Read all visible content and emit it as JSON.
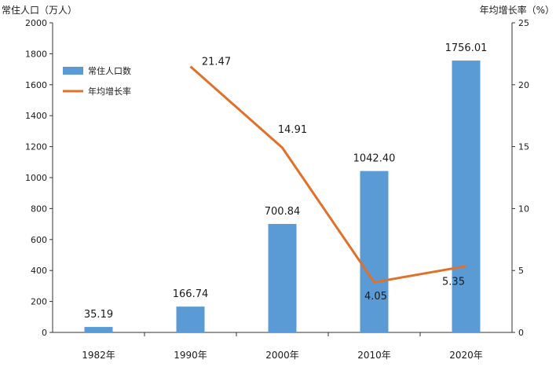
{
  "chart_data": {
    "type": "bar+line",
    "categories": [
      "1982年",
      "1990年",
      "2000年",
      "2010年",
      "2020年"
    ],
    "y_left": {
      "label": "常住人口（万人）",
      "min": 0,
      "max": 2000,
      "ticks": [
        0,
        200,
        400,
        600,
        800,
        1000,
        1200,
        1400,
        1600,
        1800,
        2000
      ]
    },
    "y_right": {
      "label": "年均增长率（%）",
      "min": 0,
      "max": 25,
      "ticks": [
        0,
        5,
        10,
        15,
        20,
        25
      ]
    },
    "series": [
      {
        "name": "常住人口数",
        "kind": "bar",
        "axis": "left",
        "color": "#5b9bd5",
        "values": [
          35.19,
          166.74,
          700.84,
          1042.4,
          1756.01
        ],
        "labels": [
          "35.19",
          "166.74",
          "700.84",
          "1042.40",
          "1756.01"
        ]
      },
      {
        "name": "年均增长率",
        "kind": "line",
        "axis": "right",
        "color": "#e0702a",
        "values": [
          null,
          21.47,
          14.91,
          4.05,
          5.35
        ],
        "labels": [
          null,
          "21.47",
          "14.91",
          "4.05",
          "5.35"
        ]
      }
    ],
    "legend": {
      "position": "top-left"
    },
    "grid": false
  }
}
